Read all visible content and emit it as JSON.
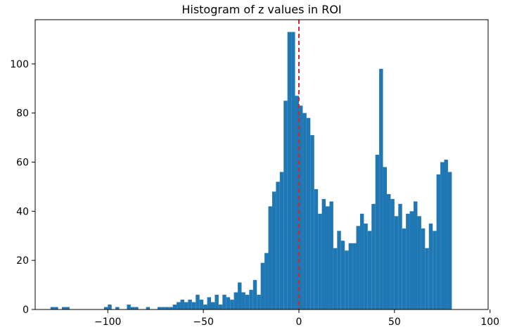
{
  "chart_data": {
    "type": "histogram",
    "title": "Histogram of z values in ROI",
    "xlabel": "",
    "ylabel": "",
    "xlim": [
      -138,
      99
    ],
    "ylim": [
      0,
      118
    ],
    "bin_width": 2.0,
    "xticks": [
      -100,
      -50,
      0,
      50,
      100
    ],
    "yticks": [
      0,
      20,
      40,
      60,
      80,
      100
    ],
    "bar_color": "#1f77b4",
    "reference_line": {
      "x": 0,
      "color": "#d62728",
      "style": "dashed"
    },
    "bins": [
      {
        "x": -129,
        "count": 1
      },
      {
        "x": -127,
        "count": 1
      },
      {
        "x": -123,
        "count": 1
      },
      {
        "x": -121,
        "count": 1
      },
      {
        "x": -101,
        "count": 1
      },
      {
        "x": -99,
        "count": 2
      },
      {
        "x": -95,
        "count": 1
      },
      {
        "x": -89,
        "count": 2
      },
      {
        "x": -87,
        "count": 1
      },
      {
        "x": -85,
        "count": 1
      },
      {
        "x": -79,
        "count": 1
      },
      {
        "x": -73,
        "count": 1
      },
      {
        "x": -71,
        "count": 1
      },
      {
        "x": -69,
        "count": 1
      },
      {
        "x": -67,
        "count": 1
      },
      {
        "x": -65,
        "count": 2
      },
      {
        "x": -63,
        "count": 3
      },
      {
        "x": -61,
        "count": 4
      },
      {
        "x": -59,
        "count": 3
      },
      {
        "x": -57,
        "count": 4
      },
      {
        "x": -55,
        "count": 3
      },
      {
        "x": -53,
        "count": 6
      },
      {
        "x": -51,
        "count": 4
      },
      {
        "x": -49,
        "count": 2
      },
      {
        "x": -47,
        "count": 5
      },
      {
        "x": -45,
        "count": 3
      },
      {
        "x": -43,
        "count": 6
      },
      {
        "x": -41,
        "count": 2
      },
      {
        "x": -39,
        "count": 6
      },
      {
        "x": -37,
        "count": 5
      },
      {
        "x": -35,
        "count": 4
      },
      {
        "x": -33,
        "count": 7
      },
      {
        "x": -31,
        "count": 11
      },
      {
        "x": -29,
        "count": 7
      },
      {
        "x": -27,
        "count": 6
      },
      {
        "x": -25,
        "count": 8
      },
      {
        "x": -23,
        "count": 12
      },
      {
        "x": -21,
        "count": 6
      },
      {
        "x": -19,
        "count": 19
      },
      {
        "x": -17,
        "count": 23
      },
      {
        "x": -15,
        "count": 42
      },
      {
        "x": -13,
        "count": 48
      },
      {
        "x": -11,
        "count": 52
      },
      {
        "x": -9,
        "count": 56
      },
      {
        "x": -7,
        "count": 85
      },
      {
        "x": -5,
        "count": 113
      },
      {
        "x": -3,
        "count": 113
      },
      {
        "x": -1,
        "count": 87
      },
      {
        "x": 1,
        "count": 83
      },
      {
        "x": 3,
        "count": 80
      },
      {
        "x": 5,
        "count": 78
      },
      {
        "x": 7,
        "count": 71
      },
      {
        "x": 9,
        "count": 49
      },
      {
        "x": 11,
        "count": 39
      },
      {
        "x": 13,
        "count": 45
      },
      {
        "x": 15,
        "count": 42
      },
      {
        "x": 17,
        "count": 44
      },
      {
        "x": 19,
        "count": 25
      },
      {
        "x": 21,
        "count": 32
      },
      {
        "x": 23,
        "count": 28
      },
      {
        "x": 25,
        "count": 24
      },
      {
        "x": 27,
        "count": 27
      },
      {
        "x": 29,
        "count": 27
      },
      {
        "x": 31,
        "count": 34
      },
      {
        "x": 33,
        "count": 39
      },
      {
        "x": 35,
        "count": 35
      },
      {
        "x": 37,
        "count": 32
      },
      {
        "x": 39,
        "count": 43
      },
      {
        "x": 41,
        "count": 63
      },
      {
        "x": 43,
        "count": 98
      },
      {
        "x": 45,
        "count": 58
      },
      {
        "x": 47,
        "count": 47
      },
      {
        "x": 49,
        "count": 45
      },
      {
        "x": 51,
        "count": 38
      },
      {
        "x": 53,
        "count": 43
      },
      {
        "x": 55,
        "count": 33
      },
      {
        "x": 57,
        "count": 39
      },
      {
        "x": 59,
        "count": 40
      },
      {
        "x": 61,
        "count": 44
      },
      {
        "x": 63,
        "count": 38
      },
      {
        "x": 65,
        "count": 33
      },
      {
        "x": 67,
        "count": 25
      },
      {
        "x": 69,
        "count": 35
      },
      {
        "x": 71,
        "count": 32
      },
      {
        "x": 73,
        "count": 55
      },
      {
        "x": 75,
        "count": 60
      },
      {
        "x": 77,
        "count": 61
      },
      {
        "x": 79,
        "count": 56
      }
    ]
  }
}
